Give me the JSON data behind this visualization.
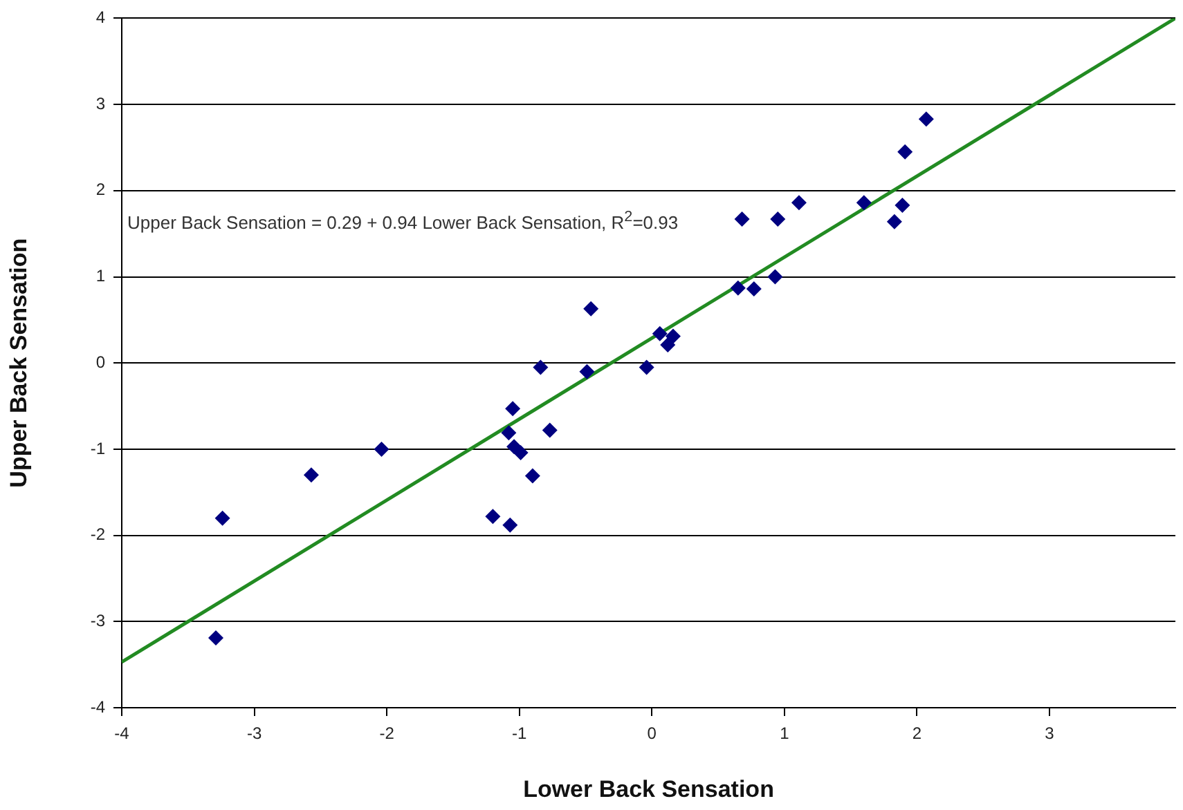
{
  "chart_data": {
    "type": "scatter",
    "xlabel": "Lower Back Sensation",
    "ylabel": "Upper Back Sensation",
    "annotations": [
      "Upper Back Sensation = 0.29 + 0.94 Lower Back Sensation, R$^{2}$=0.93"
    ],
    "xlim": [
      -4,
      3.95
    ],
    "xticks": [
      -4,
      -3,
      -2,
      -1,
      0,
      1,
      2,
      3
    ],
    "ylim": [
      -4,
      4
    ],
    "yticks": [
      -4,
      -3,
      -2,
      -1,
      0,
      1,
      2,
      3,
      4
    ],
    "grid": "y",
    "series": [
      {
        "marker": "diamond",
        "color": "#000080",
        "x": [
          -3.29,
          -3.24,
          -2.57,
          -2.04,
          -1.2,
          -1.07,
          -1.05,
          -1.08,
          -1.04,
          -0.99,
          -0.9,
          -0.84,
          -0.77,
          -0.49,
          -0.46,
          -0.04,
          0.06,
          0.12,
          0.16,
          0.65,
          0.68,
          0.77,
          0.93,
          0.95,
          1.11,
          1.6,
          1.83,
          1.89,
          1.91,
          2.07
        ],
        "values": [
          -3.19,
          -1.8,
          -1.3,
          -1.0,
          -1.78,
          -1.88,
          -0.53,
          -0.81,
          -0.97,
          -1.04,
          -1.31,
          -0.05,
          -0.78,
          -0.1,
          0.63,
          -0.05,
          0.34,
          0.21,
          0.31,
          0.87,
          1.67,
          0.86,
          1.0,
          1.67,
          1.86,
          1.86,
          1.64,
          1.83,
          2.45,
          2.83
        ]
      },
      {
        "type": "line",
        "marker": "none",
        "color": "#228b22",
        "x": [
          -4,
          3.95
        ],
        "values": [
          -3.47,
          4.0
        ]
      }
    ]
  }
}
